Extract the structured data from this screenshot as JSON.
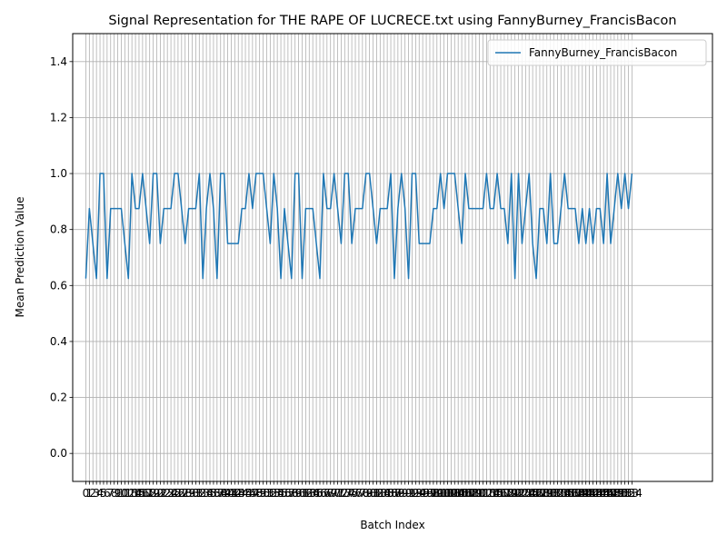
{
  "chart_data": {
    "type": "line",
    "title": "Signal Representation for THE RAPE OF LUCRECE.txt using FannyBurney_FrancisBacon",
    "xlabel": "Batch Index",
    "ylabel": "Mean Prediction Value",
    "ylim": [
      -0.1,
      1.5
    ],
    "xlim": [
      -3.7,
      176.7
    ],
    "yticks": [
      0.0,
      0.2,
      0.4,
      0.6,
      0.8,
      1.0,
      1.2,
      1.4
    ],
    "grid": true,
    "legend": "top-right",
    "series": [
      {
        "name": "FannyBurney_FrancisBacon",
        "color": "#1f77b4",
        "values": [
          0.625,
          0.875,
          0.75,
          0.625,
          1.0,
          1.0,
          0.625,
          0.875,
          0.875,
          0.875,
          0.875,
          0.75,
          0.625,
          1.0,
          0.875,
          0.875,
          1.0,
          0.875,
          0.75,
          1.0,
          1.0,
          0.75,
          0.875,
          0.875,
          0.875,
          1.0,
          1.0,
          0.875,
          0.75,
          0.875,
          0.875,
          0.875,
          1.0,
          0.625,
          0.875,
          1.0,
          0.875,
          0.625,
          1.0,
          1.0,
          0.75,
          0.75,
          0.75,
          0.75,
          0.875,
          0.875,
          1.0,
          0.875,
          1.0,
          1.0,
          1.0,
          0.875,
          0.75,
          1.0,
          0.875,
          0.625,
          0.875,
          0.75,
          0.625,
          1.0,
          1.0,
          0.625,
          0.875,
          0.875,
          0.875,
          0.75,
          0.625,
          1.0,
          0.875,
          0.875,
          1.0,
          0.875,
          0.75,
          1.0,
          1.0,
          0.75,
          0.875,
          0.875,
          0.875,
          1.0,
          1.0,
          0.875,
          0.75,
          0.875,
          0.875,
          0.875,
          1.0,
          0.625,
          0.875,
          1.0,
          0.875,
          0.625,
          1.0,
          1.0,
          0.75,
          0.75,
          0.75,
          0.75,
          0.875,
          0.875,
          1.0,
          0.875,
          1.0,
          1.0,
          1.0,
          0.875,
          0.75,
          1.0,
          0.875,
          0.875,
          0.875,
          0.875,
          0.875,
          1.0,
          0.875,
          0.875,
          1.0,
          0.875,
          0.875,
          0.75,
          1.0,
          0.625,
          1.0,
          0.75,
          0.875,
          1.0,
          0.75,
          0.625,
          0.875,
          0.875,
          0.75,
          1.0,
          0.75,
          0.75,
          0.875,
          1.0,
          0.875,
          0.875,
          0.875,
          0.75,
          0.875,
          0.75,
          0.875,
          0.75,
          0.875,
          0.875,
          0.75,
          1.0,
          0.75,
          0.875,
          1.0,
          0.875,
          1.0,
          0.875,
          1.0
        ]
      }
    ]
  }
}
